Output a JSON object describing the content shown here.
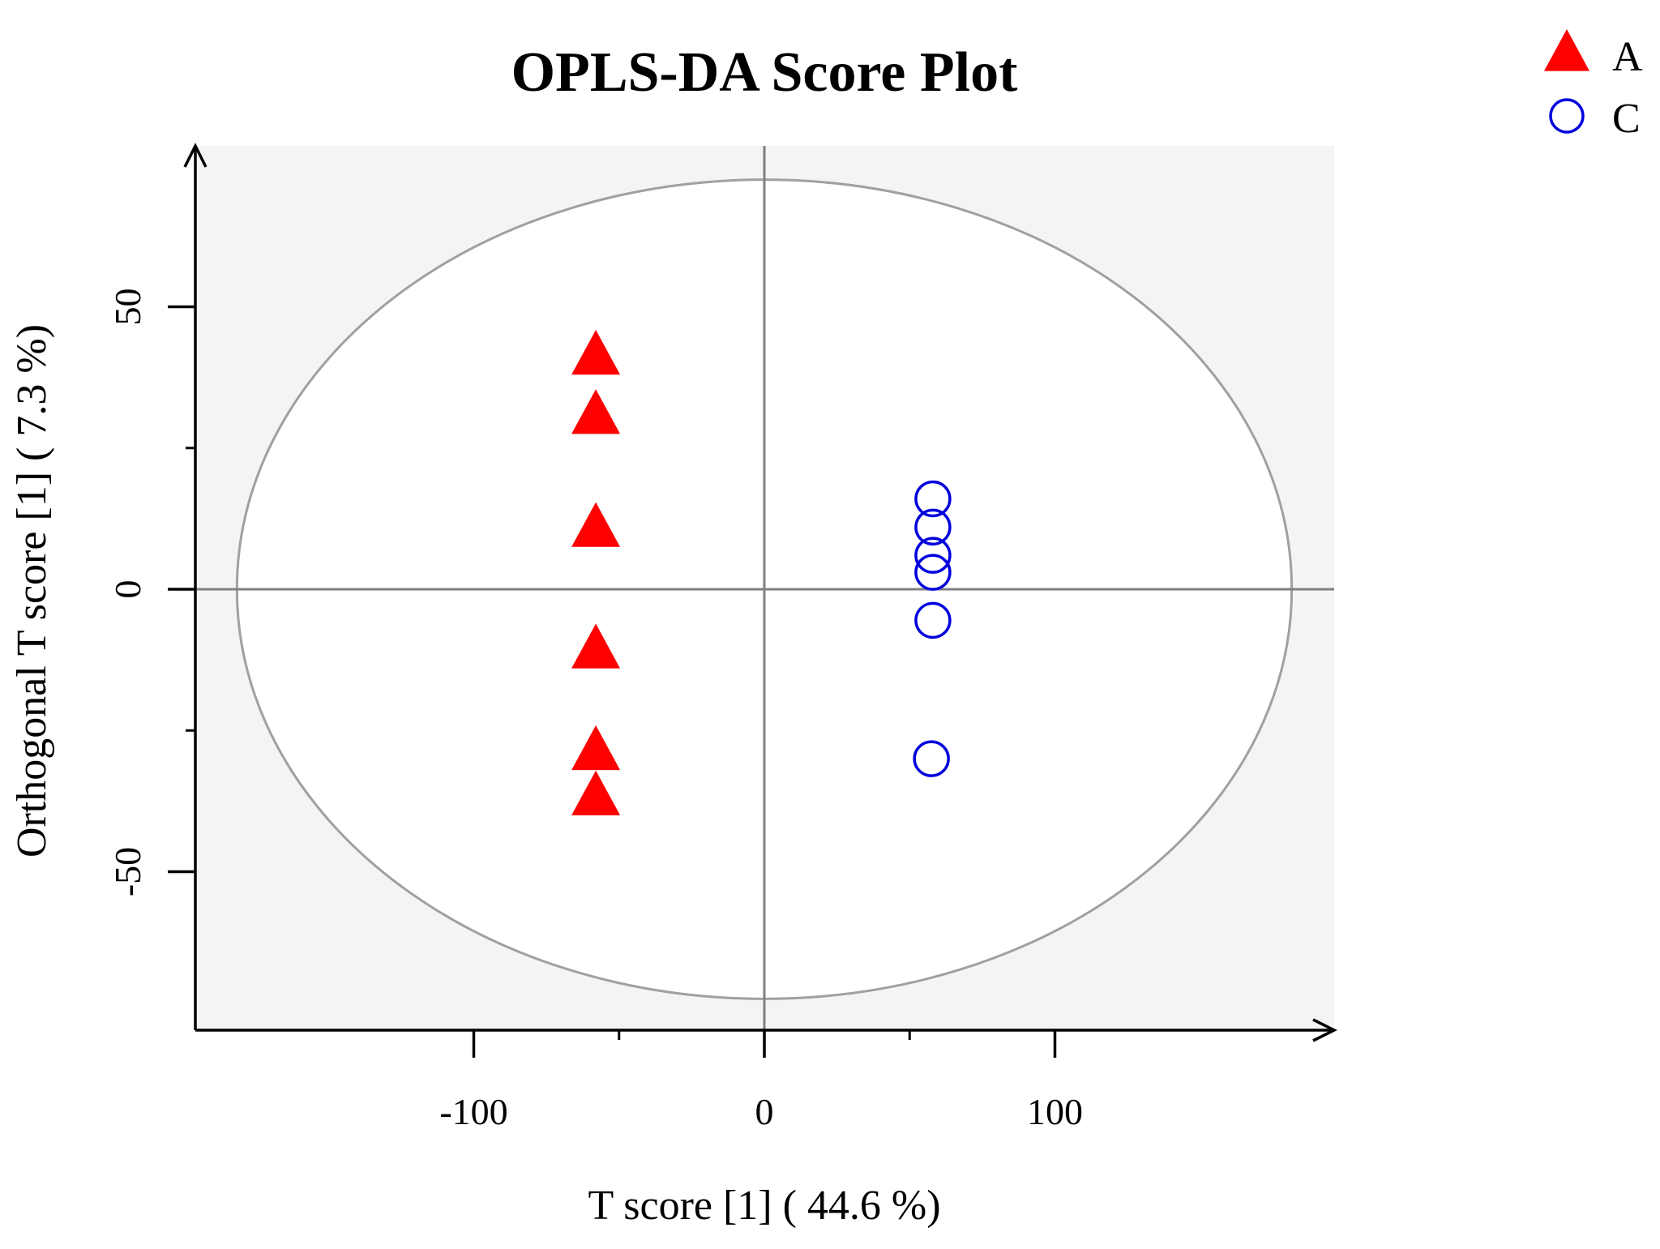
{
  "chart_data": {
    "type": "scatter",
    "title": "OPLS-DA Score Plot",
    "xlabel": "T score [1] ( 44.6 %)",
    "ylabel": "Orthogonal T score [1] ( 7.3 %)",
    "xlim": [
      -196,
      196
    ],
    "ylim": [
      -78,
      79
    ],
    "x_ticks": [
      -100,
      0,
      100
    ],
    "y_ticks": [
      -50,
      0,
      50
    ],
    "x_minor_ticks": [
      -50,
      50
    ],
    "y_minor_ticks": [
      -25,
      25
    ],
    "grid": false,
    "legend_position": "top-right",
    "ellipse": {
      "center": [
        0,
        0
      ],
      "rx": 181.5,
      "ry": 72.5
    },
    "colors": {
      "panel_background": "#f4f4f4",
      "ellipse_fill": "#ffffff",
      "ellipse_stroke": "#a0a0a0",
      "reference_lines": "#808080",
      "axis": "#000000"
    },
    "series": [
      {
        "name": "A",
        "marker": "triangle",
        "color": "#ff0000",
        "points": [
          [
            -58,
            41
          ],
          [
            -58,
            30.5
          ],
          [
            -58,
            10.5
          ],
          [
            -58,
            -11
          ],
          [
            -58,
            -29
          ],
          [
            -58,
            -37
          ]
        ]
      },
      {
        "name": "C",
        "marker": "circle",
        "color": "#0000dd",
        "points": [
          [
            58,
            16
          ],
          [
            58,
            11
          ],
          [
            58,
            6
          ],
          [
            58,
            3
          ],
          [
            58,
            -5.5
          ],
          [
            57.5,
            -30
          ]
        ]
      }
    ]
  }
}
